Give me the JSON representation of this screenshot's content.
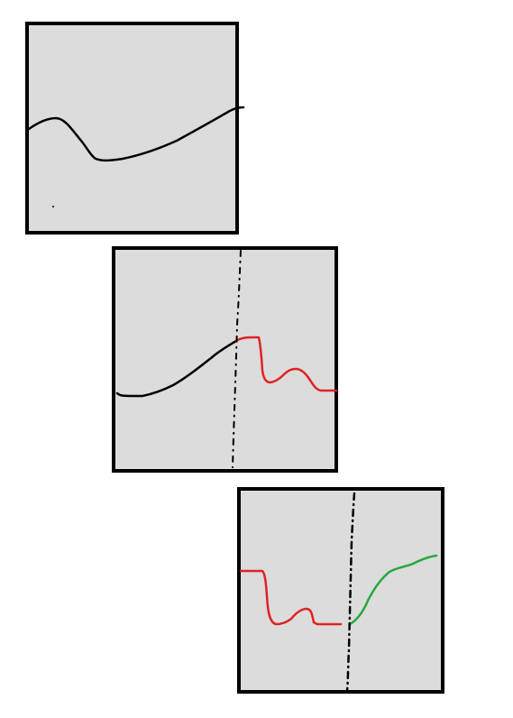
{
  "colors": {
    "background": "#ffffff",
    "panel_fill": "#dcdcdc",
    "panel_border": "#000000",
    "curve_black": "#000000",
    "curve_red": "#e02222",
    "curve_green": "#27a83a",
    "divider": "#000000"
  },
  "panels": [
    {
      "name": "panel-1",
      "segments": [
        "black"
      ],
      "has_divider": false
    },
    {
      "name": "panel-2",
      "segments": [
        "black",
        "red"
      ],
      "has_divider": true
    },
    {
      "name": "panel-3",
      "segments": [
        "red",
        "green"
      ],
      "has_divider": true
    }
  ]
}
